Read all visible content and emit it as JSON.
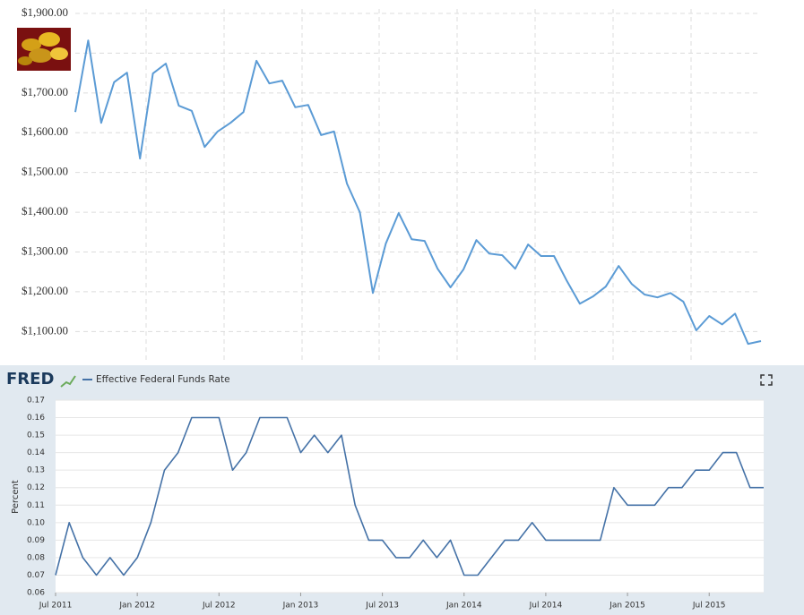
{
  "chart_data": [
    {
      "type": "line",
      "series": [
        {
          "color": "#5b9bd5",
          "values": [
            1652,
            1832,
            1625,
            1727,
            1751,
            1535,
            1749,
            1774,
            1668,
            1655,
            1564,
            1603,
            1625,
            1652,
            1781,
            1724,
            1731,
            1664,
            1670,
            1594,
            1603,
            1472,
            1400,
            1197,
            1321,
            1398,
            1332,
            1328,
            1258,
            1211,
            1256,
            1330,
            1296,
            1292,
            1258,
            1319,
            1290,
            1290,
            1227,
            1170,
            1188,
            1213,
            1265,
            1220,
            1193,
            1186,
            1197,
            1175,
            1103,
            1139,
            1118,
            1145,
            1069,
            1076
          ]
        }
      ],
      "ylim": [
        1022,
        1900
      ],
      "yticks": [
        {
          "value": 1100,
          "label": "$1,100.00"
        },
        {
          "value": 1200,
          "label": "$1,200.00"
        },
        {
          "value": 1300,
          "label": "$1,300.00"
        },
        {
          "value": 1400,
          "label": "$1,400.00"
        },
        {
          "value": 1500,
          "label": "$1,500.00"
        },
        {
          "value": 1600,
          "label": "$1,600.00"
        },
        {
          "value": 1700,
          "label": "$1,700.00"
        },
        {
          "value": 1800,
          "label": "$1,800.00"
        },
        {
          "value": 1900,
          "label": "$1,900.00"
        }
      ],
      "grid": true
    },
    {
      "type": "line",
      "source": "FRED",
      "ylabel": "Percent",
      "x": [
        "2011-07",
        "2011-08",
        "2011-09",
        "2011-10",
        "2011-11",
        "2011-12",
        "2012-01",
        "2012-02",
        "2012-03",
        "2012-04",
        "2012-05",
        "2012-06",
        "2012-07",
        "2012-08",
        "2012-09",
        "2012-10",
        "2012-11",
        "2012-12",
        "2013-01",
        "2013-02",
        "2013-03",
        "2013-04",
        "2013-05",
        "2013-06",
        "2013-07",
        "2013-08",
        "2013-09",
        "2013-10",
        "2013-11",
        "2013-12",
        "2014-01",
        "2014-02",
        "2014-03",
        "2014-04",
        "2014-05",
        "2014-06",
        "2014-07",
        "2014-08",
        "2014-09",
        "2014-10",
        "2014-11",
        "2014-12",
        "2015-01",
        "2015-02",
        "2015-03",
        "2015-04",
        "2015-05",
        "2015-06",
        "2015-07",
        "2015-08",
        "2015-09",
        "2015-10",
        "2015-11"
      ],
      "series": [
        {
          "name": "Effective Federal Funds Rate",
          "color": "#4572a7",
          "values": [
            0.07,
            0.1,
            0.08,
            0.07,
            0.08,
            0.07,
            0.08,
            0.1,
            0.13,
            0.14,
            0.16,
            0.16,
            0.16,
            0.13,
            0.14,
            0.16,
            0.16,
            0.16,
            0.14,
            0.15,
            0.14,
            0.15,
            0.11,
            0.09,
            0.09,
            0.08,
            0.08,
            0.09,
            0.08,
            0.09,
            0.07,
            0.07,
            0.08,
            0.09,
            0.09,
            0.1,
            0.09,
            0.09,
            0.09,
            0.09,
            0.09,
            0.12,
            0.11,
            0.11,
            0.11,
            0.12,
            0.12,
            0.13,
            0.13,
            0.14,
            0.14,
            0.12,
            0.12
          ]
        }
      ],
      "xlim": [
        "2011-07",
        "2015-11"
      ],
      "xticks": [
        {
          "value": "2011-07",
          "label": "Jul 2011"
        },
        {
          "value": "2012-01",
          "label": "Jan 2012"
        },
        {
          "value": "2012-07",
          "label": "Jul 2012"
        },
        {
          "value": "2013-01",
          "label": "Jan 2013"
        },
        {
          "value": "2013-07",
          "label": "Jul 2013"
        },
        {
          "value": "2014-01",
          "label": "Jan 2014"
        },
        {
          "value": "2014-07",
          "label": "Jul 2014"
        },
        {
          "value": "2015-01",
          "label": "Jan 2015"
        },
        {
          "value": "2015-07",
          "label": "Jul 2015"
        }
      ],
      "ylim": [
        0.06,
        0.17
      ],
      "yticks": [
        0.06,
        0.07,
        0.08,
        0.09,
        {
          "value": 0.1,
          "label": "0.10"
        },
        0.11,
        0.12,
        0.13,
        0.14,
        0.15,
        0.16,
        0.17
      ],
      "grid": true
    }
  ]
}
